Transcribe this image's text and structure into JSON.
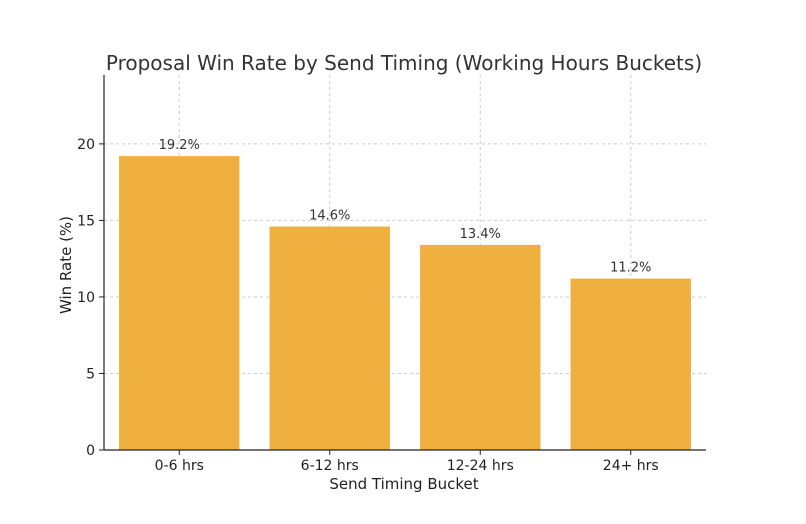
{
  "chart_data": {
    "type": "bar",
    "title": "Proposal Win Rate by Send Timing (Working Hours Buckets)",
    "xlabel": "Send Timing Bucket",
    "ylabel": "Win Rate (%)",
    "categories": [
      "0-6 hrs",
      "6-12 hrs",
      "12-24 hrs",
      "24+ hrs"
    ],
    "values": [
      19.2,
      14.6,
      13.4,
      11.2
    ],
    "data_labels": [
      "19.2%",
      "14.6%",
      "13.4%",
      "11.2%"
    ],
    "ylim": [
      0,
      24.5
    ],
    "yticks": [
      0,
      5,
      10,
      15,
      20
    ],
    "ytick_labels": [
      "0",
      "5",
      "10",
      "15",
      "20"
    ],
    "grid": true,
    "bar_color": "#f0b040"
  }
}
